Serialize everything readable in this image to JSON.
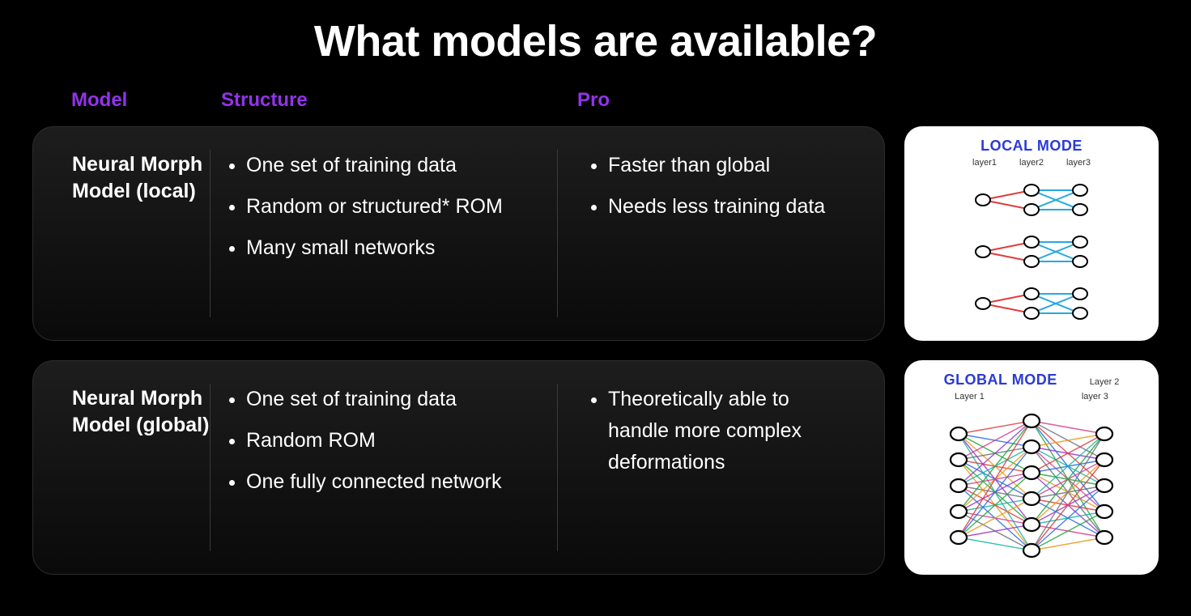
{
  "title": "What models are available?",
  "headers": {
    "model": "Model",
    "structure": "Structure",
    "pro": "Pro"
  },
  "rows": [
    {
      "name": "Neural Morph Model (local)",
      "structure": [
        "One set of training data",
        "Random or structured* ROM",
        "Many small networks"
      ],
      "pro": [
        "Faster than global",
        "Needs less training data"
      ],
      "diagram": {
        "title": "LOCAL MODE",
        "title_color": "#2a3bd6",
        "layer_labels": [
          "layer1",
          "layer2",
          "layer3"
        ],
        "type": "local-network",
        "groups": 3,
        "nodes_per_layer": [
          1,
          2,
          2
        ],
        "colors": {
          "edge_a": "#e03a3a",
          "edge_b": "#25a9e0",
          "node_stroke": "#000000",
          "node_fill": "#ffffff"
        }
      }
    },
    {
      "name": "Neural Morph Model (global)",
      "structure": [
        "One set of training data",
        "Random ROM",
        "One fully connected network"
      ],
      "pro": [
        "Theoretically able to handle more complex deformations"
      ],
      "diagram": {
        "title": "GLOBAL MODE",
        "title_color": "#2a3bd6",
        "layer_labels": [
          "Layer 1",
          "Layer 2",
          "layer 3"
        ],
        "type": "global-network",
        "layers": [
          5,
          6,
          5
        ],
        "edge_colors": [
          "#e03a3a",
          "#2a6ee0",
          "#22a83a",
          "#e89b1d",
          "#9b34c9",
          "#18b5a6",
          "#d53f8c",
          "#6b7280"
        ],
        "node_stroke": "#000000",
        "node_fill": "#ffffff"
      }
    }
  ],
  "styling": {
    "background": "#000000",
    "card_bg_top": "#1d1d1d",
    "card_bg_bottom": "#0a0a0a",
    "card_border": "#2c2c2c",
    "header_color": "#9333ea",
    "text_color": "#ffffff",
    "title_fontsize": 54,
    "header_fontsize": 24,
    "body_fontsize": 25
  }
}
